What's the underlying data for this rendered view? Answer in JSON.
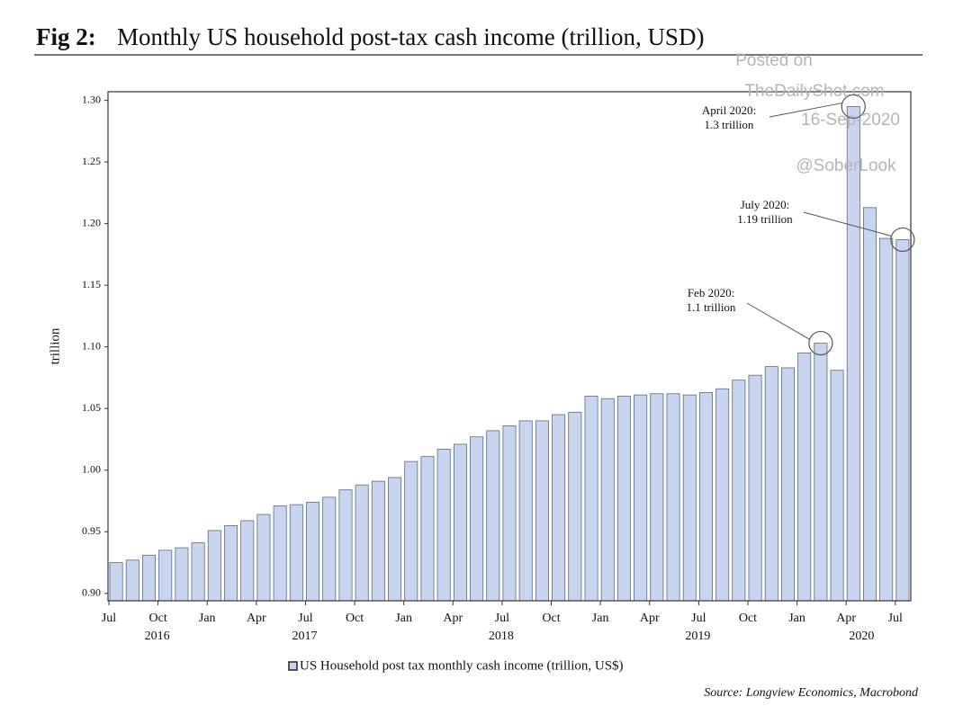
{
  "chart_data": {
    "type": "bar",
    "title_label": "Fig 2:",
    "title": "Monthly US household post-tax cash income (trillion, USD)",
    "y_label": "trillion",
    "source": "Source: Longview Economics, Macrobond",
    "watermark": [
      "Posted on",
      "TheDailyShot.com",
      "16-Sep-2020",
      "@SoberLook"
    ],
    "categories": [
      "Jul",
      null,
      null,
      "Oct",
      null,
      null,
      "Jan",
      null,
      null,
      "Apr",
      null,
      null,
      "Jul",
      null,
      null,
      "Oct",
      null,
      null,
      "Jan",
      null,
      null,
      "Apr",
      null,
      null,
      "Jul",
      null,
      null,
      "Oct",
      null,
      null,
      "Jan",
      null,
      null,
      "Apr",
      null,
      null,
      "Jul",
      null,
      null,
      "Oct",
      null,
      null,
      "Jan",
      null,
      null,
      "Apr",
      null,
      null,
      "Jul"
    ],
    "category_years": [
      null,
      null,
      null,
      "2016",
      null,
      null,
      null,
      null,
      null,
      null,
      null,
      null,
      "2017",
      null,
      null,
      null,
      null,
      null,
      null,
      null,
      null,
      null,
      null,
      null,
      "2018",
      null,
      null,
      null,
      null,
      null,
      null,
      null,
      null,
      null,
      null,
      null,
      "2019",
      null,
      null,
      null,
      null,
      null,
      null,
      null,
      null,
      "2020",
      null,
      null,
      null
    ],
    "series": [
      {
        "name": "US Household post tax monthly cash income (trillion, US$)",
        "color": "#c9d5ee",
        "values": [
          0.925,
          0.927,
          0.931,
          0.935,
          0.937,
          0.941,
          0.951,
          0.955,
          0.959,
          0.964,
          0.971,
          0.972,
          0.974,
          0.978,
          0.984,
          0.988,
          0.991,
          0.994,
          1.007,
          1.011,
          1.017,
          1.021,
          1.027,
          1.032,
          1.036,
          1.04,
          1.04,
          1.045,
          1.047,
          1.06,
          1.058,
          1.06,
          1.061,
          1.062,
          1.062,
          1.061,
          1.063,
          1.066,
          1.073,
          1.077,
          1.084,
          1.083,
          1.095,
          1.103,
          1.081,
          1.295,
          1.213,
          1.188,
          1.187
        ]
      }
    ],
    "annotations": [
      {
        "lines": [
          "April 2020:",
          "1.3 trillion"
        ]
      },
      {
        "lines": [
          "July 2020:",
          "1.19 trillion"
        ]
      },
      {
        "lines": [
          "Feb 2020:",
          "1.1 trillion"
        ]
      }
    ],
    "ylim": [
      0.894,
      1.307
    ],
    "yticks": [
      {
        "value": 0.9,
        "label": "0.90"
      },
      0.95,
      {
        "value": 1.0,
        "label": "1.00"
      },
      1.05,
      {
        "value": 1.1,
        "label": "1.10"
      },
      1.15,
      {
        "value": 1.2,
        "label": "1.20"
      },
      1.25,
      {
        "value": 1.3,
        "label": "1.30"
      }
    ]
  }
}
